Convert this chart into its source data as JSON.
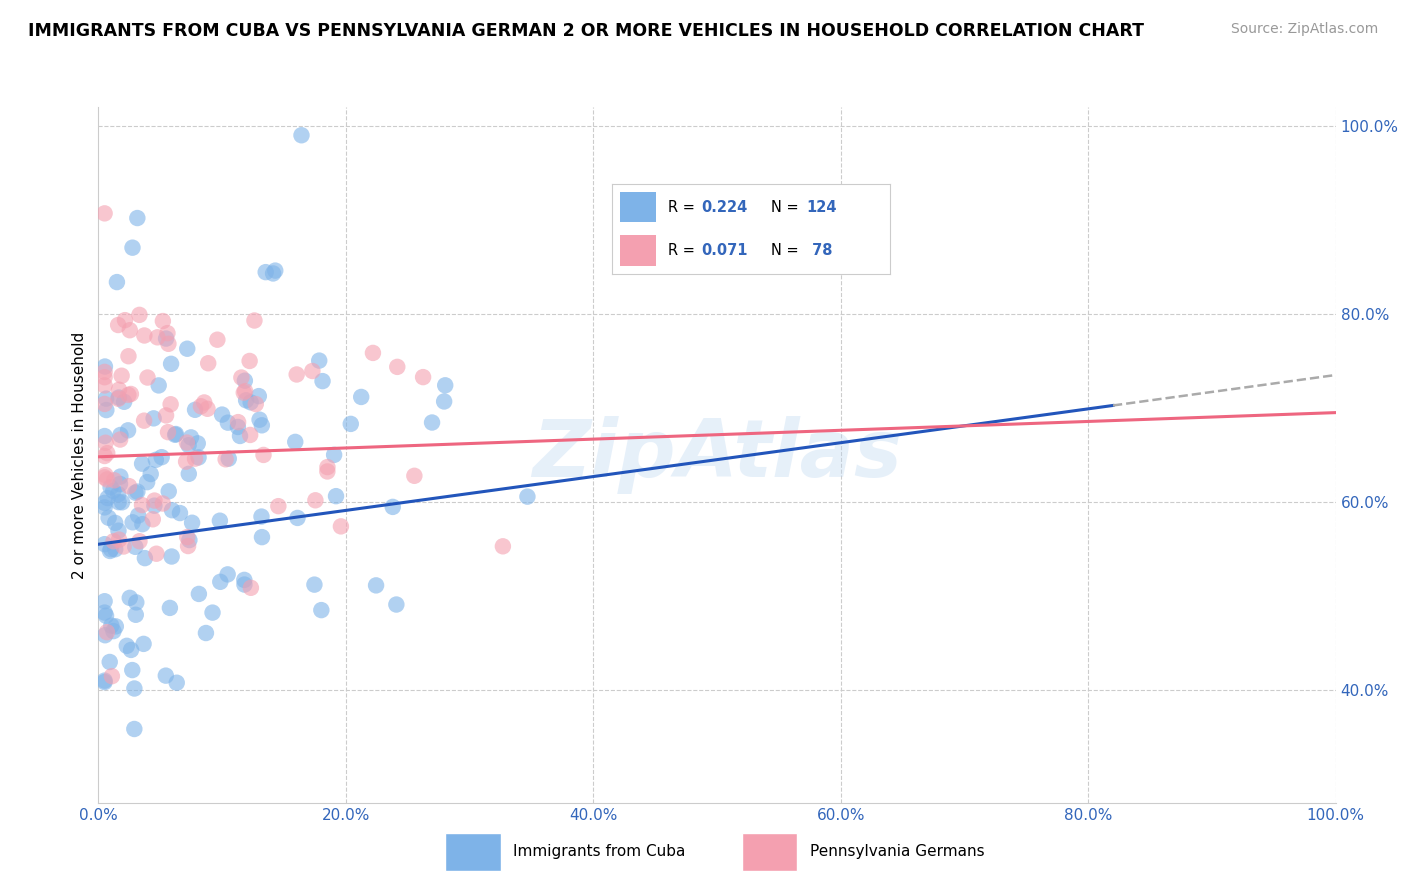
{
  "title": "IMMIGRANTS FROM CUBA VS PENNSYLVANIA GERMAN 2 OR MORE VEHICLES IN HOUSEHOLD CORRELATION CHART",
  "source": "Source: ZipAtlas.com",
  "ylabel": "2 or more Vehicles in Household",
  "xlim": [
    0.0,
    1.0
  ],
  "ylim": [
    0.28,
    1.02
  ],
  "blue_color": "#7EB3E8",
  "pink_color": "#F4A0B0",
  "blue_line_color": "#2255BB",
  "pink_line_color": "#EE6680",
  "r_blue": 0.224,
  "n_blue": 124,
  "r_pink": 0.071,
  "n_pink": 78,
  "legend_label_blue": "Immigrants from Cuba",
  "legend_label_pink": "Pennsylvania Germans",
  "watermark": "ZipAtlas",
  "background_color": "#ffffff",
  "grid_color": "#cccccc",
  "blue_line_start_y": 0.555,
  "blue_line_end_y": 0.735,
  "pink_line_start_y": 0.648,
  "pink_line_end_y": 0.695
}
